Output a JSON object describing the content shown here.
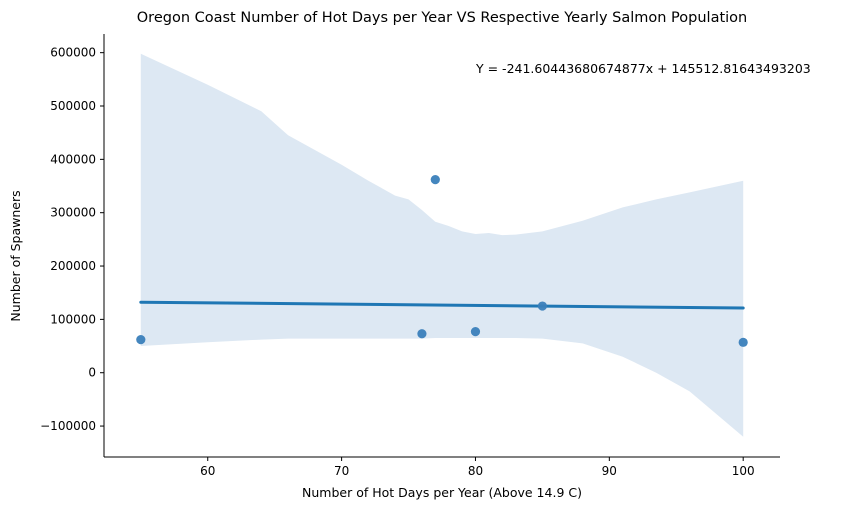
{
  "chart_data": {
    "type": "scatter",
    "title": "Oregon Coast Number of Hot Days per Year VS Respective Yearly Salmon Population",
    "xlabel": "Number of Hot Days per Year (Above 14.9 C)",
    "ylabel": "Number of Spawners",
    "annotation": "Y = -241.60443680674877x + 145512.81643493203",
    "xlim": [
      52.25,
      102.75
    ],
    "ylim": [
      -158000,
      635000
    ],
    "x_ticks": [
      60,
      70,
      80,
      90,
      100
    ],
    "x_tick_labels": [
      "60",
      "70",
      "80",
      "90",
      "100"
    ],
    "y_ticks": [
      -100000,
      0,
      100000,
      200000,
      300000,
      400000,
      500000,
      600000
    ],
    "y_tick_labels": [
      "−100000",
      "0",
      "100000",
      "200000",
      "300000",
      "400000",
      "500000",
      "600000"
    ],
    "points": {
      "x": [
        55,
        76,
        77,
        80,
        85,
        100
      ],
      "y": [
        62000,
        73000,
        362000,
        77000,
        125000,
        57000
      ]
    },
    "regression": {
      "slope": -241.60443680674877,
      "intercept": 145512.81643493203,
      "x_range": [
        55,
        100
      ]
    },
    "confidence_band": {
      "x": [
        55,
        60,
        64,
        66,
        70,
        72,
        74,
        75,
        76,
        77,
        78,
        79,
        80,
        81,
        82,
        83,
        85,
        88,
        91,
        93.5,
        96,
        100
      ],
      "upper": [
        598000,
        540000,
        490000,
        445000,
        390000,
        360000,
        332000,
        325000,
        305000,
        283000,
        275000,
        265000,
        260000,
        262000,
        258000,
        259000,
        265000,
        285000,
        310000,
        325000,
        338000,
        360000
      ],
      "lower": [
        50000,
        57000,
        62000,
        64000,
        64000,
        64000,
        64000,
        64000,
        64000,
        65000,
        65000,
        65000,
        65000,
        65000,
        65000,
        65000,
        64000,
        55000,
        30000,
        0,
        -35000,
        -120000
      ]
    },
    "colors": {
      "points": "#3a7fba",
      "line": "#1f77b4",
      "band": "#dde8f3",
      "axis": "#000000"
    },
    "spines": [
      "left",
      "bottom"
    ],
    "grid": false
  }
}
